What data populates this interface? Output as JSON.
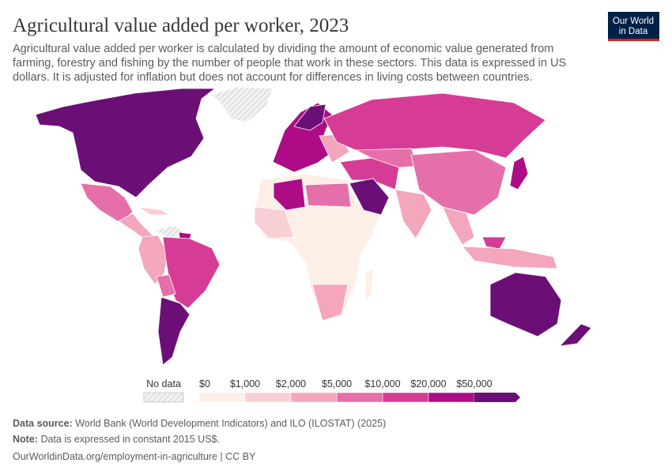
{
  "header": {
    "title": "Agricultural value added per worker, 2023",
    "subtitle": [
      "Agricultural value added per worker is calculated by dividing the amount of economic value generated from",
      "farming, forestry and fishing by the number of people that work in these sectors. This data is expressed in US",
      "dollars. It is adjusted for inflation but does not account for differences in living costs between countries."
    ],
    "logo": [
      "Our World",
      "in Data"
    ]
  },
  "legend": {
    "no_data": "No data",
    "labels": [
      "$0",
      "$1,000",
      "$2,000",
      "$5,000",
      "$10,000",
      "$20,000",
      "$50,000"
    ],
    "colors": [
      "#fdeee8",
      "#f9cfd6",
      "#f4a6bd",
      "#e56fa8",
      "#d63c96",
      "#ad0c86",
      "#6b0f77"
    ]
  },
  "footer": {
    "source_label": "Data source:",
    "source": "World Bank (World Development Indicators) and ILO (ILOSTAT) (2025)",
    "note_label": "Note:",
    "note": "Data is expressed in constant 2015 US$.",
    "link": "OurWorldinData.org/employment-in-agriculture | CC BY"
  }
}
